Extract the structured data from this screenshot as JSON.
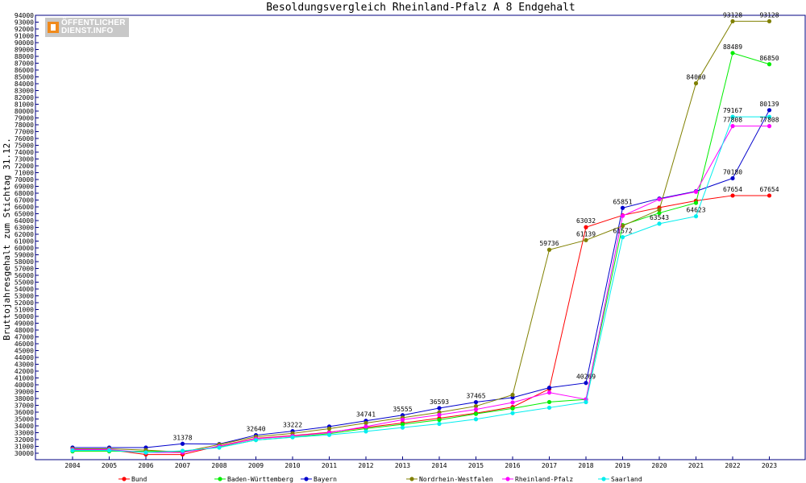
{
  "chart_data": {
    "type": "line",
    "title": "Besoldungsvergleich Rheinland-Pfalz A 8 Endgehalt",
    "ylabel": "Bruttojahresgehalt zum Stichtag 31.12.",
    "xlabel": "",
    "ylim": [
      30000,
      94000
    ],
    "ytick_step": 1000,
    "grid": false,
    "legend": "bottom",
    "categories": [
      "2004",
      "2005",
      "2006",
      "2007",
      "2008",
      "2009",
      "2010",
      "2011",
      "2012",
      "2013",
      "2014",
      "2015",
      "2016",
      "2017",
      "2018",
      "2019",
      "2020",
      "2021",
      "2022",
      "2023"
    ],
    "series": [
      {
        "name": "Bund",
        "color": "#ff0000",
        "values": [
          30448,
          30512,
          29812,
          29812,
          31069,
          32178,
          32570,
          33060,
          33760,
          34410,
          35112,
          35850,
          36750,
          39390,
          63032,
          64773,
          65900,
          66900,
          67654,
          67654
        ]
      },
      {
        "name": "Baden-Württemberg",
        "color": "#00ee00",
        "values": [
          30280,
          30280,
          30280,
          30280,
          30888,
          31930,
          32360,
          32850,
          33600,
          34220,
          34874,
          35752,
          36547,
          37480,
          37870,
          63340,
          65110,
          66587,
          88489,
          86850
        ]
      },
      {
        "name": "Bayern",
        "color": "#0000cc",
        "values": [
          30827,
          30827,
          30827,
          31378,
          31340,
          32640,
          33222,
          33900,
          34741,
          35555,
          36593,
          37465,
          38137,
          39570,
          40269,
          65851,
          67212,
          68281,
          70180,
          80139
        ]
      },
      {
        "name": "Nordrhein-Westfalen",
        "color": "#808000",
        "values": [
          30650,
          30650,
          30453,
          30156,
          31283,
          32410,
          32897,
          33588,
          34408,
          35195,
          35976,
          36874,
          38537,
          59736,
          61139,
          63226,
          65596,
          84060,
          93128,
          93128
        ]
      },
      {
        "name": "Rheinland-Pfalz",
        "color": "#ff00ff",
        "values": [
          30527,
          30527,
          30100,
          30100,
          31020,
          32120,
          32519,
          33002,
          33900,
          34900,
          35600,
          36400,
          37417,
          38870,
          37870,
          64690,
          67110,
          68207,
          77808,
          77808
        ]
      },
      {
        "name": "Saarland",
        "color": "#00eeee",
        "values": [
          30410,
          30410,
          30100,
          30350,
          30820,
          31930,
          32330,
          32680,
          33190,
          33750,
          34297,
          34971,
          35857,
          36654,
          37470,
          61572,
          63543,
          64623,
          79167,
          79167
        ]
      }
    ],
    "data_labels": [
      {
        "series": 0,
        "index": 14,
        "text": "63032"
      },
      {
        "series": 0,
        "index": 18,
        "text": "67654"
      },
      {
        "series": 0,
        "index": 19,
        "text": "67654"
      },
      {
        "series": 1,
        "index": 18,
        "text": "88489"
      },
      {
        "series": 1,
        "index": 19,
        "text": "86850"
      },
      {
        "series": 2,
        "index": 3,
        "text": "31378"
      },
      {
        "series": 2,
        "index": 9,
        "text": "35555"
      },
      {
        "series": 2,
        "index": 10,
        "text": "36593"
      },
      {
        "series": 2,
        "index": 11,
        "text": "37465"
      },
      {
        "series": 2,
        "index": 18,
        "text": "70180"
      },
      {
        "series": 2,
        "index": 19,
        "text": "80139"
      },
      {
        "series": 2,
        "index": 15,
        "text": "65851"
      },
      {
        "series": 3,
        "index": 13,
        "text": "59736"
      },
      {
        "series": 3,
        "index": 14,
        "text": "61139"
      },
      {
        "series": 3,
        "index": 17,
        "text": "84060"
      },
      {
        "series": 3,
        "index": 18,
        "text": "93128"
      },
      {
        "series": 3,
        "index": 19,
        "text": "93128"
      },
      {
        "series": 4,
        "index": 18,
        "text": "77808"
      },
      {
        "series": 4,
        "index": 19,
        "text": "77808"
      },
      {
        "series": 5,
        "index": 15,
        "text": "61572"
      },
      {
        "series": 5,
        "index": 16,
        "text": "63543"
      },
      {
        "series": 5,
        "index": 17,
        "text": "64623"
      },
      {
        "series": 5,
        "index": 18,
        "text": "79167"
      },
      {
        "series": 2,
        "index": 14,
        "text": "40269"
      },
      {
        "series": 2,
        "index": 8,
        "text": "34741"
      },
      {
        "series": 2,
        "index": 5,
        "text": "32640"
      },
      {
        "series": 2,
        "index": 6,
        "text": "33222"
      }
    ]
  },
  "logo": {
    "line1": "ÖFFENTLICHER",
    "line2": "DIENST.INFO"
  }
}
